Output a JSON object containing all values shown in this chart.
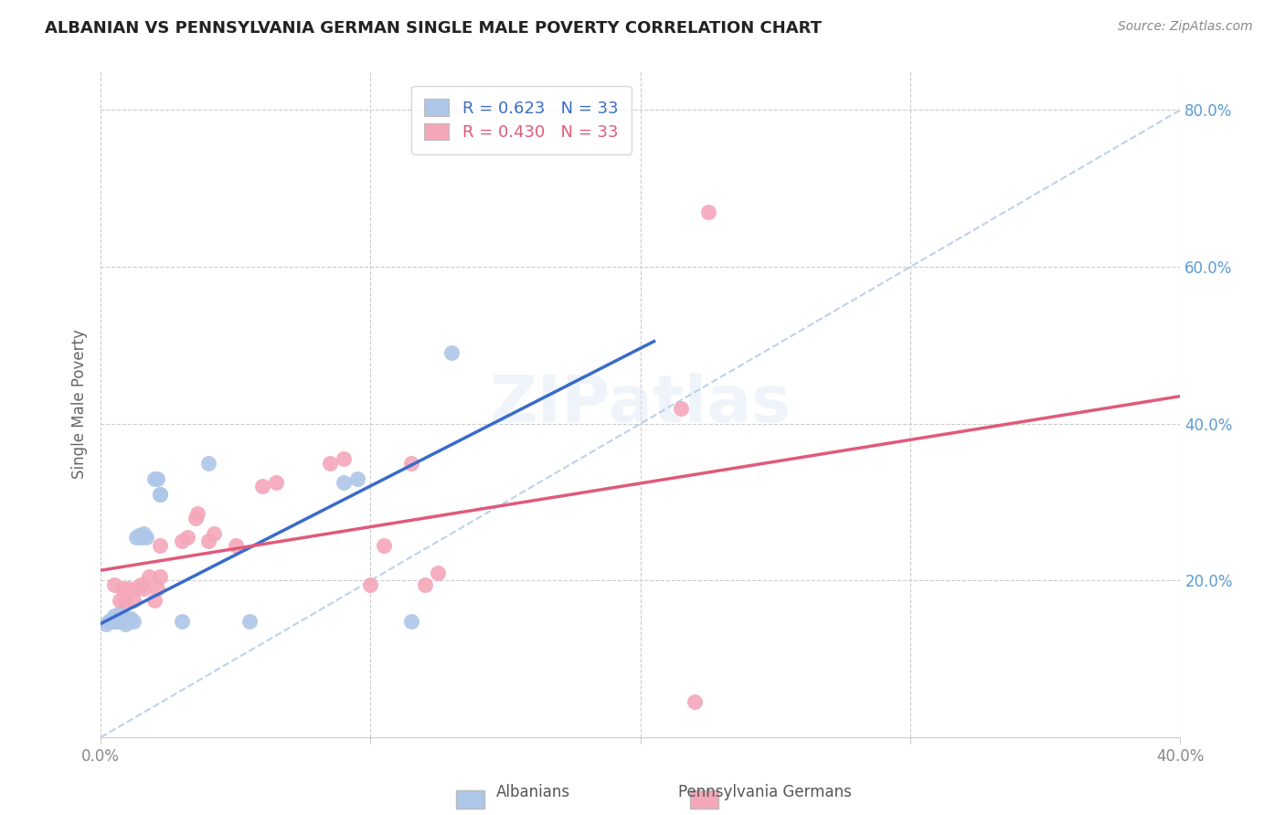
{
  "title": "ALBANIAN VS PENNSYLVANIA GERMAN SINGLE MALE POVERTY CORRELATION CHART",
  "source": "Source: ZipAtlas.com",
  "ylabel": "Single Male Poverty",
  "xlim": [
    0.0,
    0.4
  ],
  "ylim": [
    0.0,
    0.85
  ],
  "albanian_R": "0.623",
  "albanian_N": "33",
  "pagerman_R": "0.430",
  "pagerman_N": "33",
  "albanian_color": "#aec6e8",
  "pagerman_color": "#f4a7b9",
  "albanian_line_color": "#3a6bc9",
  "pagerman_line_color": "#e05a7a",
  "diagonal_color": "#aec6e8",
  "albanian_scatter": [
    [
      0.002,
      0.145
    ],
    [
      0.003,
      0.148
    ],
    [
      0.004,
      0.15
    ],
    [
      0.004,
      0.15
    ],
    [
      0.005,
      0.148
    ],
    [
      0.005,
      0.155
    ],
    [
      0.006,
      0.148
    ],
    [
      0.006,
      0.15
    ],
    [
      0.007,
      0.148
    ],
    [
      0.007,
      0.158
    ],
    [
      0.008,
      0.155
    ],
    [
      0.008,
      0.148
    ],
    [
      0.009,
      0.145
    ],
    [
      0.01,
      0.15
    ],
    [
      0.01,
      0.148
    ],
    [
      0.011,
      0.152
    ],
    [
      0.012,
      0.148
    ],
    [
      0.013,
      0.255
    ],
    [
      0.014,
      0.258
    ],
    [
      0.015,
      0.255
    ],
    [
      0.016,
      0.26
    ],
    [
      0.017,
      0.255
    ],
    [
      0.02,
      0.33
    ],
    [
      0.021,
      0.33
    ],
    [
      0.022,
      0.31
    ],
    [
      0.022,
      0.31
    ],
    [
      0.03,
      0.148
    ],
    [
      0.04,
      0.35
    ],
    [
      0.055,
      0.148
    ],
    [
      0.09,
      0.325
    ],
    [
      0.095,
      0.33
    ],
    [
      0.115,
      0.148
    ],
    [
      0.13,
      0.49
    ]
  ],
  "pagerman_scatter": [
    [
      0.005,
      0.195
    ],
    [
      0.007,
      0.175
    ],
    [
      0.008,
      0.19
    ],
    [
      0.009,
      0.175
    ],
    [
      0.01,
      0.19
    ],
    [
      0.012,
      0.175
    ],
    [
      0.013,
      0.19
    ],
    [
      0.015,
      0.195
    ],
    [
      0.016,
      0.19
    ],
    [
      0.018,
      0.205
    ],
    [
      0.02,
      0.175
    ],
    [
      0.021,
      0.19
    ],
    [
      0.022,
      0.205
    ],
    [
      0.022,
      0.245
    ],
    [
      0.03,
      0.25
    ],
    [
      0.032,
      0.255
    ],
    [
      0.035,
      0.28
    ],
    [
      0.036,
      0.285
    ],
    [
      0.04,
      0.25
    ],
    [
      0.042,
      0.26
    ],
    [
      0.05,
      0.245
    ],
    [
      0.06,
      0.32
    ],
    [
      0.065,
      0.325
    ],
    [
      0.085,
      0.35
    ],
    [
      0.09,
      0.355
    ],
    [
      0.1,
      0.195
    ],
    [
      0.105,
      0.245
    ],
    [
      0.115,
      0.35
    ],
    [
      0.12,
      0.195
    ],
    [
      0.125,
      0.21
    ],
    [
      0.215,
      0.42
    ],
    [
      0.22,
      0.045
    ],
    [
      0.225,
      0.67
    ]
  ],
  "background_color": "#ffffff",
  "grid_color": "#cccccc"
}
